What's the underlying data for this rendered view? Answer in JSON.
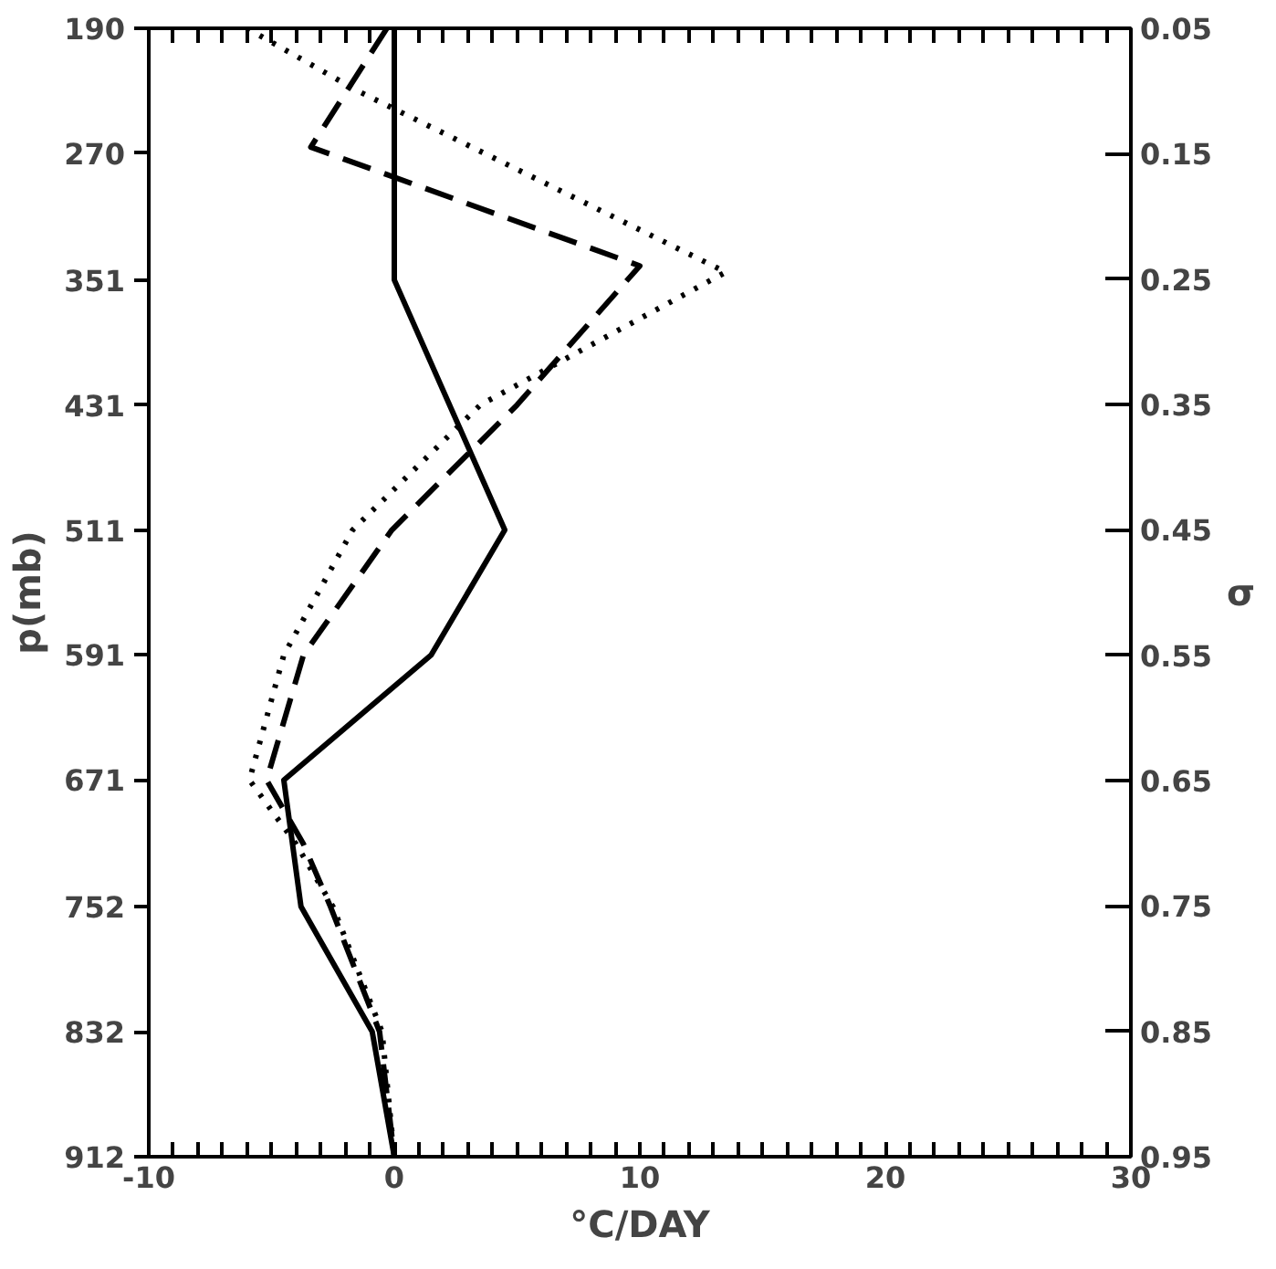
{
  "chart_data": {
    "type": "line",
    "xlabel": "°C/DAY",
    "ylabel": "p(mb)",
    "y2label": "σ",
    "grid": false,
    "xlim": [
      -10,
      30
    ],
    "xticks": [
      -10,
      {
        "value": -9,
        "label": null
      },
      {
        "value": -8,
        "label": null
      },
      {
        "value": -7,
        "label": null
      },
      {
        "value": -6,
        "label": null
      },
      {
        "value": -5,
        "label": null
      },
      {
        "value": -4,
        "label": null
      },
      {
        "value": -3,
        "label": null
      },
      {
        "value": -2,
        "label": null
      },
      {
        "value": -1,
        "label": null
      },
      0,
      {
        "value": 1,
        "label": null
      },
      {
        "value": 2,
        "label": null
      },
      {
        "value": 3,
        "label": null
      },
      {
        "value": 4,
        "label": null
      },
      {
        "value": 5,
        "label": null
      },
      {
        "value": 6,
        "label": null
      },
      {
        "value": 7,
        "label": null
      },
      {
        "value": 8,
        "label": null
      },
      {
        "value": 9,
        "label": null
      },
      10,
      {
        "value": 11,
        "label": null
      },
      {
        "value": 12,
        "label": null
      },
      {
        "value": 13,
        "label": null
      },
      {
        "value": 14,
        "label": null
      },
      {
        "value": 15,
        "label": null
      },
      {
        "value": 16,
        "label": null
      },
      {
        "value": 17,
        "label": null
      },
      {
        "value": 18,
        "label": null
      },
      {
        "value": 19,
        "label": null
      },
      20,
      {
        "value": 21,
        "label": null
      },
      {
        "value": 22,
        "label": null
      },
      {
        "value": 23,
        "label": null
      },
      {
        "value": 24,
        "label": null
      },
      {
        "value": 25,
        "label": null
      },
      {
        "value": 26,
        "label": null
      },
      {
        "value": 27,
        "label": null
      },
      {
        "value": 28,
        "label": null
      },
      {
        "value": 29,
        "label": null
      },
      30
    ],
    "ylim": [
      912,
      190
    ],
    "yticks": [
      190,
      270,
      351,
      431,
      511,
      591,
      671,
      752,
      832,
      912
    ],
    "y2lim": [
      0.95,
      0.05
    ],
    "y2ticks": [
      0.05,
      0.15,
      0.25,
      0.35,
      0.45,
      0.55,
      0.65,
      0.75,
      0.85,
      0.95
    ],
    "series": [
      {
        "color": "#000000",
        "line_style": "solid",
        "x": [
          0,
          0,
          4.5,
          1.5,
          -4.5,
          -3.8,
          -0.9,
          0
        ],
        "values": [
          190,
          351,
          511,
          591,
          671,
          752,
          832,
          912
        ]
      },
      {
        "color": "#000000",
        "line_style": "dashed",
        "x": [
          -0.3,
          -3.4,
          10,
          5,
          -0.1,
          -3.7,
          -5.2,
          -3.7,
          -2.6,
          -0.6,
          0
        ],
        "values": [
          190,
          266,
          342,
          431,
          511,
          591,
          671,
          712,
          752,
          832,
          912
        ]
      },
      {
        "color": "#000000",
        "line_style": "dotted",
        "x": [
          -6,
          -1.5,
          13.5,
          3.5,
          -1.7,
          -4.5,
          -5.9,
          -4,
          -2.5,
          -0.5,
          0
        ],
        "values": [
          190,
          230,
          346,
          431,
          511,
          591,
          671,
          712,
          752,
          832,
          912
        ]
      }
    ]
  }
}
